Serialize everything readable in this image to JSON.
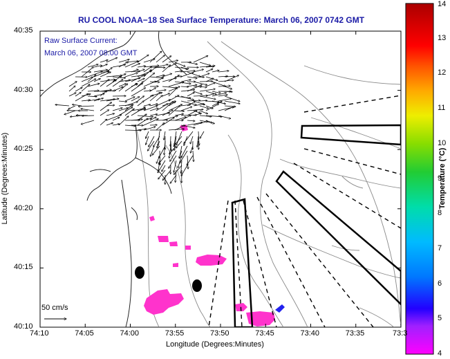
{
  "title": "RU COOL  NOAA−18  Sea Surface Temperature:  March 06, 2007 0742 GMT",
  "legend": {
    "line1": "Raw Surface Current:",
    "line2": "March 06, 2007 08:00 GMT",
    "scale_label": "50 cm/s"
  },
  "axes": {
    "xlabel": "Longitude (Degrees:Minutes)",
    "ylabel": "Latitude (Degrees:Minutes)",
    "x_ticks": [
      "74:10",
      "74:05",
      "74:00",
      "73:55",
      "73:50",
      "73:45",
      "73:40",
      "73:35",
      "73:3"
    ],
    "y_ticks": [
      "40:35",
      "40:30",
      "40:25",
      "40:20",
      "40:15",
      "40:10"
    ]
  },
  "colorbar": {
    "label": "Temperature (°C)",
    "min": 4,
    "max": 14,
    "ticks": [
      "14",
      "13",
      "12",
      "11",
      "10",
      "9",
      "8",
      "7",
      "6",
      "5",
      "4"
    ]
  },
  "colors": {
    "title": "#1a1aa6",
    "sst_patch": "#ff33cc",
    "sst_cold_patch": "#2222ee"
  }
}
